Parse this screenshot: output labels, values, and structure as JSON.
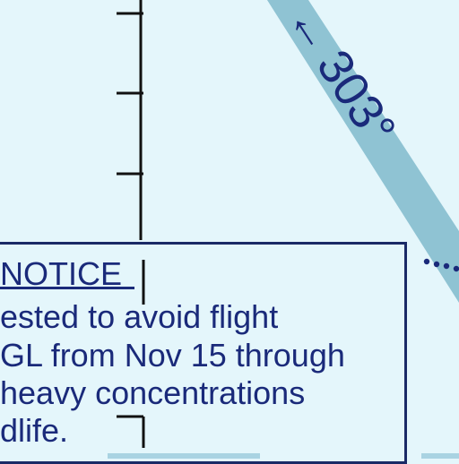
{
  "colors": {
    "background": "#e4f6fb",
    "ink": "#1a2a7a",
    "route_band": "#8fc3d3",
    "tick_line": "#111111"
  },
  "route": {
    "label": "303°",
    "arrow_glyph": "←"
  },
  "notice": {
    "lines": [
      "NOTICE",
      "ested to avoid flight",
      "GL from Nov 15 through",
      "heavy concentrations",
      "dlife."
    ]
  }
}
